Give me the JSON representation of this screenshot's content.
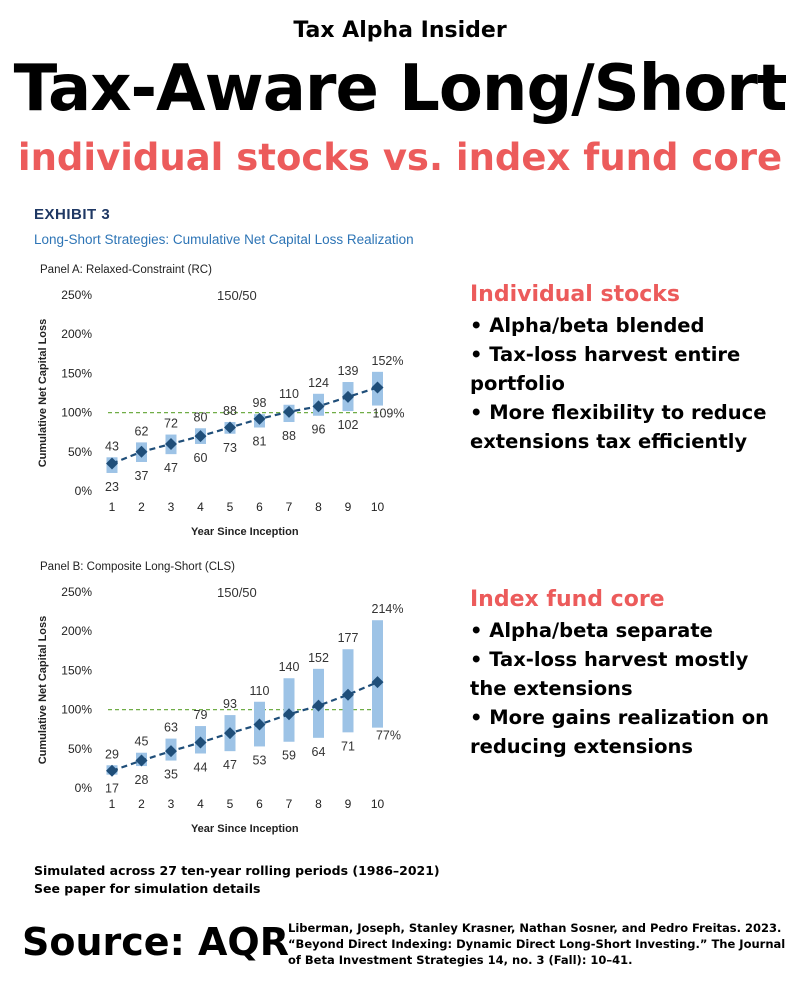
{
  "header": {
    "kicker": "Tax Alpha Insider",
    "title": "Tax-Aware Long/Short",
    "subtitle": "individual stocks vs. index fund core"
  },
  "exhibit": {
    "label": "EXHIBIT 3",
    "title": "Long-Short Strategies: Cumulative Net Capital Loss Realization"
  },
  "chart_data": [
    {
      "type": "line",
      "title": "Panel A: Relaxed-Constraint (RC)",
      "annotation": "150/50",
      "xlabel": "Year Since Inception",
      "ylabel": "Cumulative Net Capital Loss",
      "x": [
        1,
        2,
        3,
        4,
        5,
        6,
        7,
        8,
        9,
        10
      ],
      "ylim": [
        0,
        250
      ],
      "yticks": [
        "0%",
        "50%",
        "100%",
        "150%",
        "200%",
        "250%"
      ],
      "reference_line": 100,
      "median": [
        35,
        50,
        60,
        70,
        81,
        92,
        101,
        108,
        120,
        132
      ],
      "high": [
        43,
        62,
        72,
        80,
        88,
        98,
        110,
        124,
        139,
        152
      ],
      "low": [
        23,
        37,
        47,
        60,
        73,
        81,
        88,
        96,
        102,
        109
      ],
      "high_labels": [
        "43",
        "62",
        "72",
        "80",
        "88",
        "98",
        "110",
        "124",
        "139",
        "152%"
      ],
      "low_labels": [
        "23",
        "37",
        "47",
        "60",
        "73",
        "81",
        "88",
        "96",
        "102",
        "109%"
      ],
      "colors": {
        "range": "#9dc3e6",
        "median": "#1f4e79",
        "reference": "#70ad47"
      }
    },
    {
      "type": "line",
      "title": "Panel B: Composite Long-Short (CLS)",
      "annotation": "150/50",
      "xlabel": "Year Since Inception",
      "ylabel": "Cumulative Net Capital Loss",
      "x": [
        1,
        2,
        3,
        4,
        5,
        6,
        7,
        8,
        9,
        10
      ],
      "ylim": [
        0,
        250
      ],
      "yticks": [
        "0%",
        "50%",
        "100%",
        "150%",
        "200%",
        "250%"
      ],
      "reference_line": 100,
      "median": [
        22,
        35,
        47,
        58,
        70,
        81,
        94,
        105,
        119,
        135
      ],
      "high": [
        29,
        45,
        63,
        79,
        93,
        110,
        140,
        152,
        177,
        214
      ],
      "low": [
        17,
        28,
        35,
        44,
        47,
        53,
        59,
        64,
        71,
        77
      ],
      "high_labels": [
        "29",
        "45",
        "63",
        "79",
        "93",
        "110",
        "140",
        "152",
        "177",
        "214%"
      ],
      "low_labels": [
        "17",
        "28",
        "35",
        "44",
        "47",
        "53",
        "59",
        "64",
        "71",
        "77%"
      ],
      "colors": {
        "range": "#9dc3e6",
        "median": "#1f4e79",
        "reference": "#70ad47"
      }
    }
  ],
  "panels": [
    {
      "heading": "Individual stocks",
      "bullets": [
        "• Alpha/beta blended",
        "• Tax-loss harvest entire portfolio",
        "• More flexibility to reduce extensions tax efficiently"
      ]
    },
    {
      "heading": "Index fund core",
      "bullets": [
        "• Alpha/beta separate",
        "• Tax-loss harvest mostly the extensions",
        "• More gains realization on reducing extensions"
      ]
    }
  ],
  "footnote": {
    "line1": "Simulated across 27 ten-year rolling periods (1986–2021)",
    "line2": "See paper for simulation details"
  },
  "source": {
    "label": "Source: AQR",
    "citation": "Liberman, Joseph, Stanley Krasner, Nathan Sosner, and Pedro Freitas. 2023. “Beyond Direct Indexing: Dynamic Direct Long-Short Investing.” The Journal of Beta Investment Strategies 14, no. 3 (Fall): 10–41."
  }
}
